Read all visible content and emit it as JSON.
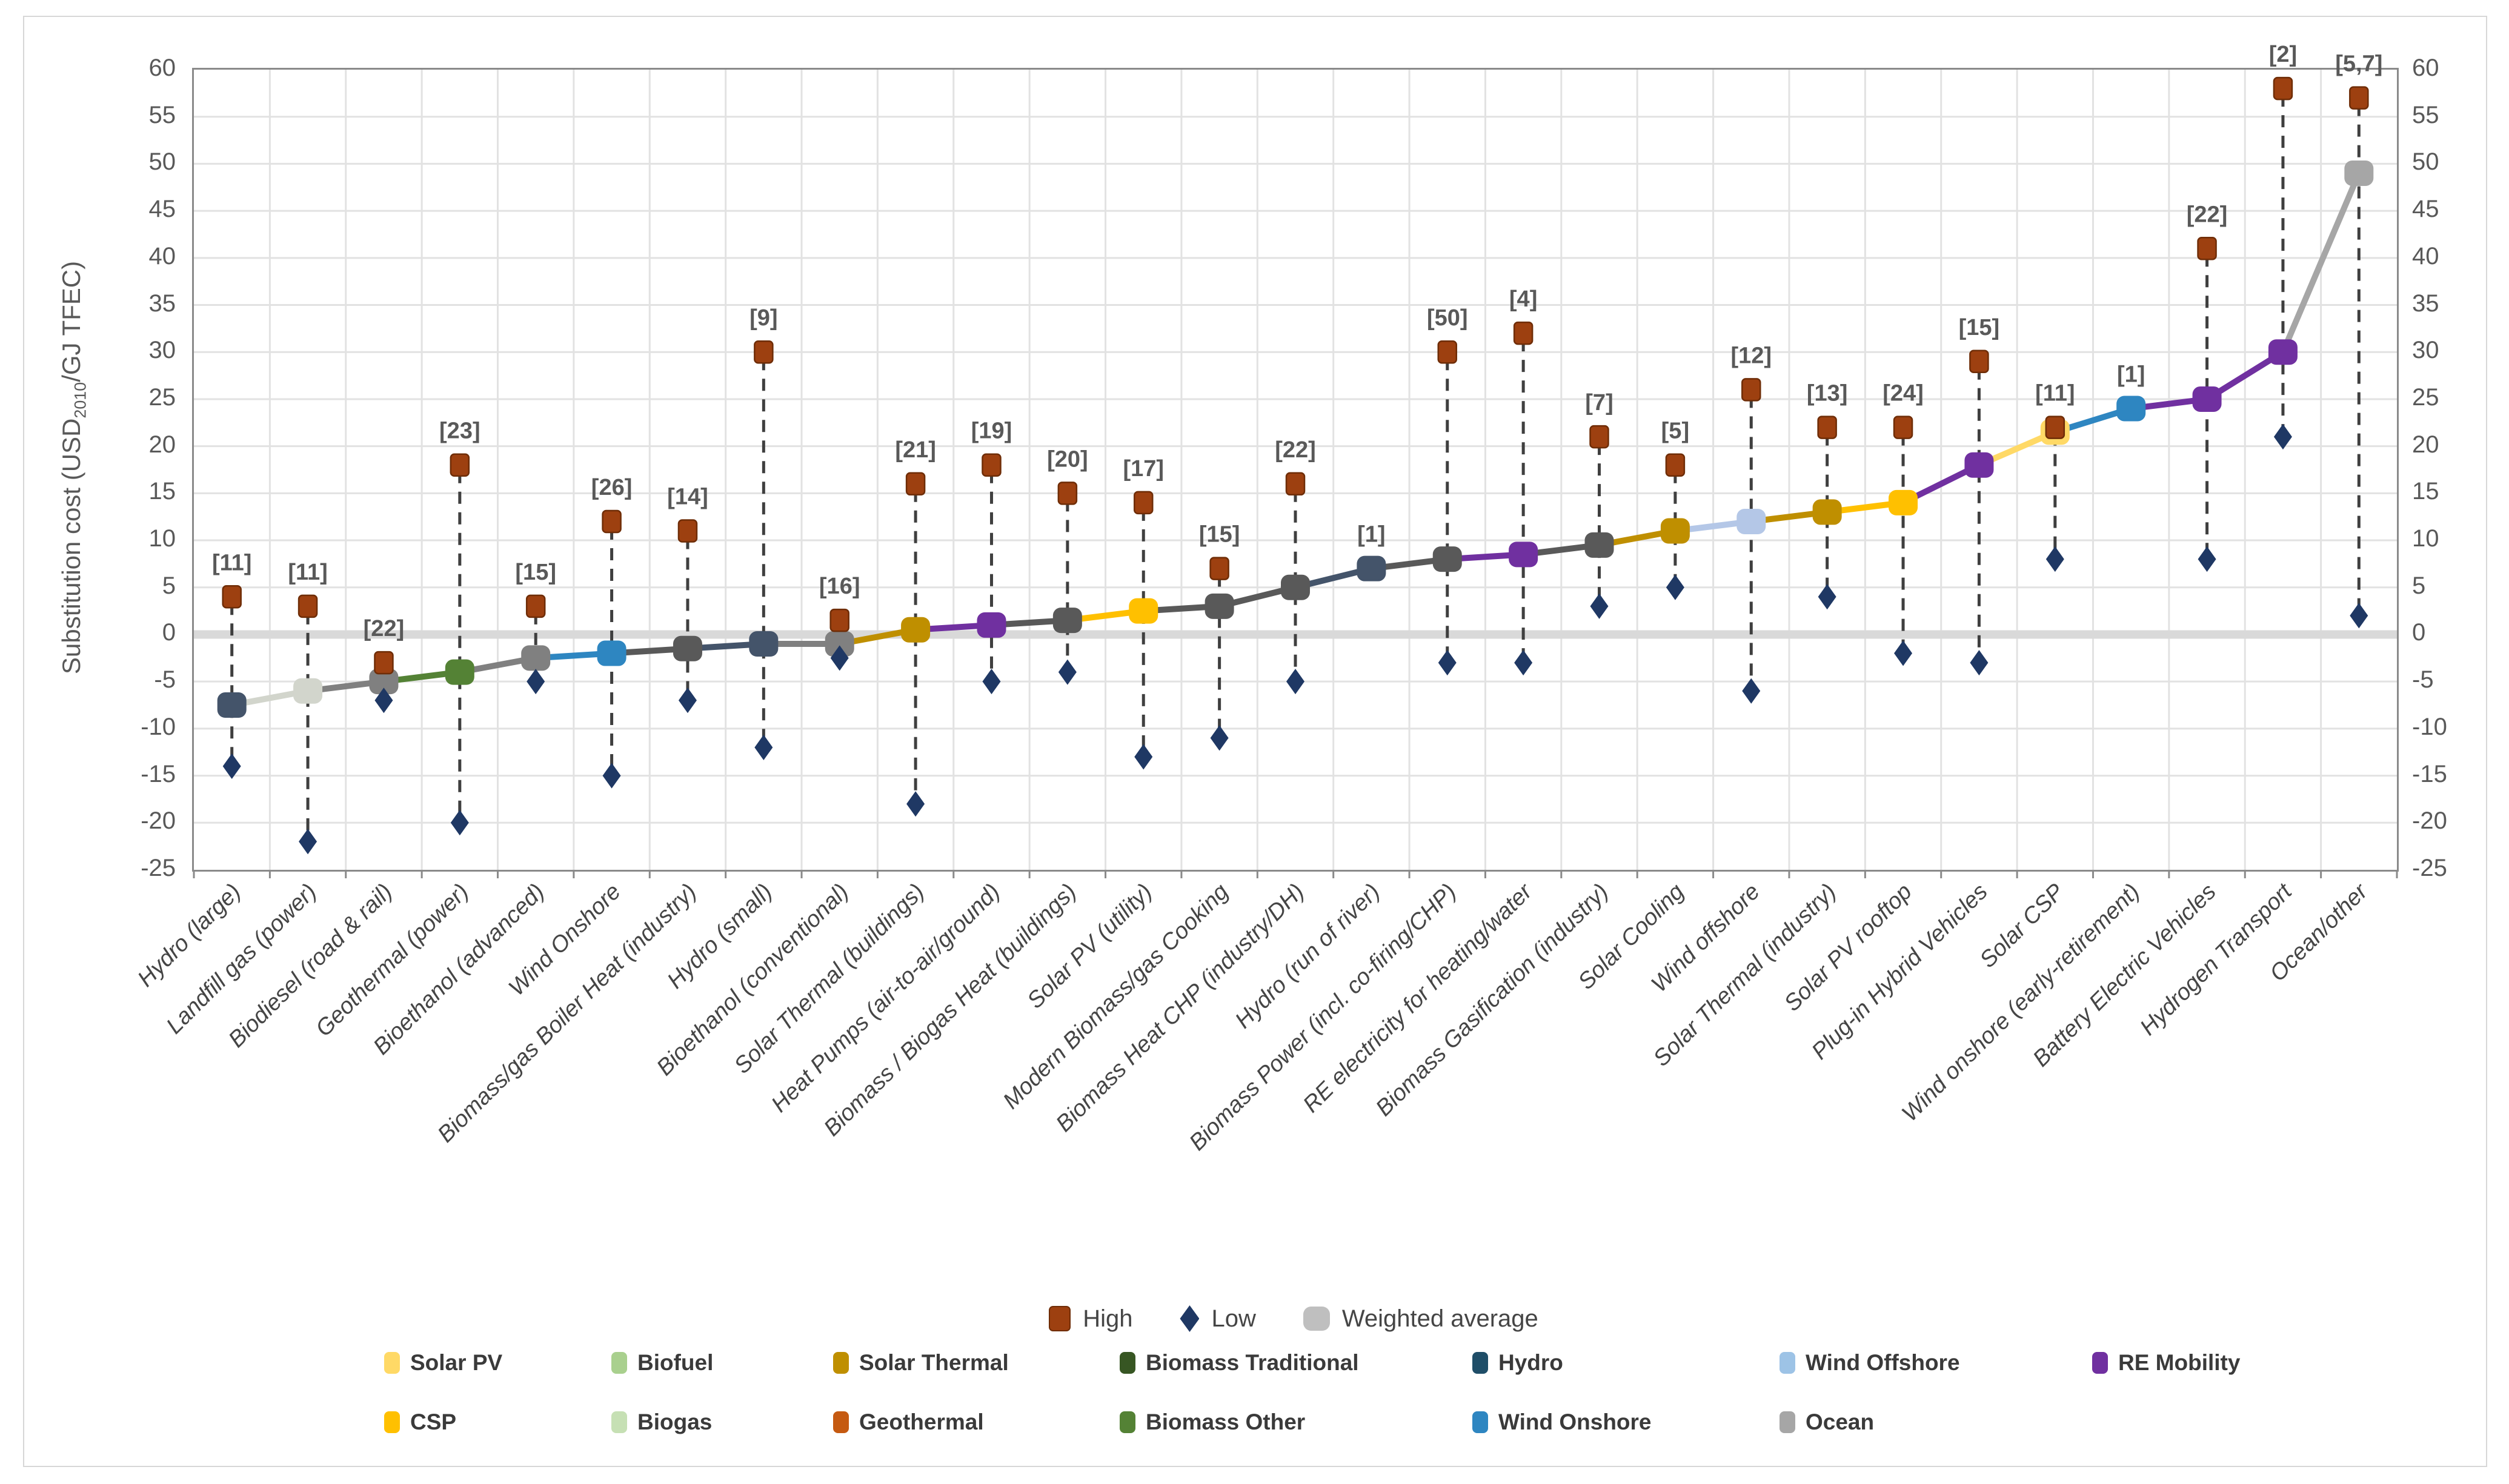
{
  "axis": {
    "title_pre": "Substitution cost (USD",
    "title_sub": "2010",
    "title_post": "/GJ TFEC)",
    "tick_labels": [
      "60",
      "55",
      "50",
      "45",
      "40",
      "35",
      "30",
      "25",
      "20",
      "15",
      "10",
      "5",
      "0",
      "-5",
      "-10",
      "-15",
      "-20",
      "-25"
    ],
    "tick_values": [
      60,
      55,
      50,
      45,
      40,
      35,
      30,
      25,
      20,
      15,
      10,
      5,
      0,
      -5,
      -10,
      -15,
      -20,
      -25
    ]
  },
  "top_legend": [
    {
      "label": "High",
      "shape": "square",
      "color": "#9d4010"
    },
    {
      "label": "Low",
      "shape": "diamond",
      "color": "#1f3864"
    },
    {
      "label": "Weighted average",
      "shape": "round",
      "color": "#bfbfbf"
    }
  ],
  "bottom_legend": {
    "rows": [
      [
        {
          "label": "Solar PV",
          "color": "#ffd966"
        },
        {
          "label": "Biofuel",
          "color": "#a9d08e"
        },
        {
          "label": "Solar Thermal",
          "color": "#bf8f00"
        },
        {
          "label": "Biomass Traditional",
          "color": "#375623"
        },
        {
          "label": "Hydro",
          "color": "#1f4e68"
        },
        {
          "label": "Wind Offshore",
          "color": "#9dc3e6"
        },
        {
          "label": "RE Mobility",
          "color": "#7030a0"
        }
      ],
      [
        {
          "label": "CSP",
          "color": "#ffc000"
        },
        {
          "label": "Biogas",
          "color": "#c6e0b4"
        },
        {
          "label": "Geothermal",
          "color": "#c55a11"
        },
        {
          "label": "Biomass Other",
          "color": "#548235"
        },
        {
          "label": "Wind Onshore",
          "color": "#2e86c1"
        },
        {
          "label": "Ocean",
          "color": "#a6a6a6"
        }
      ]
    ]
  },
  "chart_data": {
    "type": "line",
    "title": "",
    "xlabel": "",
    "ylabel": "Substitution cost (USD2010/GJ TFEC)",
    "ylim": [
      -25,
      60
    ],
    "grid": true,
    "legend_position": "bottom",
    "series_legend": [
      "High",
      "Low",
      "Weighted average"
    ],
    "colors": {
      "high": "#9d4010",
      "high_border": "#6f2d07",
      "low": "#1f3864",
      "weighted_average_legend": "#bfbfbf",
      "dashed_line": "#3f3f3f",
      "gridline": "#e2e2e2",
      "zero_band": "#d9d9d9",
      "plot_border": "#8a8a8a",
      "bracket_text": "#595959"
    },
    "categories": [
      "Hydro (large)",
      "Landfill gas (power)",
      "Biodiesel (road & rail)",
      "Geothermal (power)",
      "Bioethanol (advanced)",
      "Wind Onshore",
      "Biomass/gas Boiler Heat (industry)",
      "Hydro (small)",
      "Bioethanol (conventional)",
      "Solar Thermal (buildings)",
      "Heat Pumps (air-to-air/ground)",
      "Biomass / Biogas Heat (buildings)",
      "Solar PV (utility)",
      "Modern Biomass/gas Cooking",
      "Biomass Heat CHP (industry/DH)",
      "Hydro (run of river)",
      "Biomass Power (incl. co-firing/CHP)",
      "RE electricity for heating/water",
      "Biomass Gasification (industry)",
      "Solar Cooling",
      "Wind offshore",
      "Solar Thermal (industry)",
      "Solar PV rooftop",
      "Plug-in Hybrid Vehicles",
      "Solar CSP",
      "Wind onshore (early-retirement)",
      "Battery Electric Vehicles",
      "Hydrogen Transport",
      "Ocean/other"
    ],
    "points": [
      {
        "category": "Hydro (large)",
        "study_count": "[11]",
        "high": 4,
        "low": -14,
        "wa": -7.5,
        "color": "#44546a",
        "has_range": true
      },
      {
        "category": "Landfill gas (power)",
        "study_count": "[11]",
        "high": 3,
        "low": -22,
        "wa": -6,
        "color": "#d2d5cc",
        "has_range": true
      },
      {
        "category": "Biodiesel (road & rail)",
        "study_count": "[22]",
        "high": -3,
        "low": -7,
        "wa": -5,
        "color": "#808080",
        "has_range": true
      },
      {
        "category": "Geothermal (power)",
        "study_count": "[23]",
        "high": 18,
        "low": -20,
        "wa": -4,
        "color": "#548235",
        "has_range": true
      },
      {
        "category": "Bioethanol (advanced)",
        "study_count": "[15]",
        "high": 3,
        "low": -5,
        "wa": -2.5,
        "color": "#808080",
        "has_range": true
      },
      {
        "category": "Wind Onshore",
        "study_count": "[26]",
        "high": 12,
        "low": -15,
        "wa": -2,
        "color": "#2e86c1",
        "has_range": true
      },
      {
        "category": "Biomass/gas Boiler Heat (industry)",
        "study_count": "[14]",
        "high": 11,
        "low": -7,
        "wa": -1.5,
        "color": "#595959",
        "has_range": true
      },
      {
        "category": "Hydro (small)",
        "study_count": "[9]",
        "high": 30,
        "low": -12,
        "wa": -1,
        "color": "#44546a",
        "has_range": true
      },
      {
        "category": "Bioethanol (conventional)",
        "study_count": "[16]",
        "high": 1.5,
        "low": -2.5,
        "wa": -1,
        "color": "#808080",
        "has_range": true
      },
      {
        "category": "Solar Thermal (buildings)",
        "study_count": "[21]",
        "high": 16,
        "low": -18,
        "wa": 0.5,
        "color": "#bf8f00",
        "has_range": true
      },
      {
        "category": "Heat Pumps (air-to-air/ground)",
        "study_count": "[19]",
        "high": 18,
        "low": -5,
        "wa": 1,
        "color": "#7030a0",
        "has_range": true
      },
      {
        "category": "Biomass / Biogas Heat (buildings)",
        "study_count": "[20]",
        "high": 15,
        "low": -4,
        "wa": 1.5,
        "color": "#595959",
        "has_range": true
      },
      {
        "category": "Solar PV (utility)",
        "study_count": "[17]",
        "high": 14,
        "low": -13,
        "wa": 2.5,
        "color": "#ffc000",
        "has_range": true
      },
      {
        "category": "Modern Biomass/gas Cooking",
        "study_count": "[15]",
        "high": 7,
        "low": -11,
        "wa": 3,
        "color": "#595959",
        "has_range": true
      },
      {
        "category": "Biomass Heat CHP (industry/DH)",
        "study_count": "[22]",
        "high": 16,
        "low": -5,
        "wa": 5,
        "color": "#595959",
        "has_range": true
      },
      {
        "category": "Hydro (run of river)",
        "study_count": "[1]",
        "high": 7,
        "low": 7,
        "wa": 7,
        "color": "#44546a",
        "has_range": false
      },
      {
        "category": "Biomass Power (incl. co-firing/CHP)",
        "study_count": "[50]",
        "high": 30,
        "low": -3,
        "wa": 8,
        "color": "#595959",
        "has_range": true
      },
      {
        "category": "RE electricity for heating/water",
        "study_count": "[4]",
        "high": 32,
        "low": -3,
        "wa": 8.5,
        "color": "#7030a0",
        "has_range": true
      },
      {
        "category": "Biomass Gasification (industry)",
        "study_count": "[7]",
        "high": 21,
        "low": 3,
        "wa": 9.5,
        "color": "#595959",
        "has_range": true
      },
      {
        "category": "Solar Cooling",
        "study_count": "[5]",
        "high": 18,
        "low": 5,
        "wa": 11,
        "color": "#bf8f00",
        "has_range": true
      },
      {
        "category": "Wind offshore",
        "study_count": "[12]",
        "high": 26,
        "low": -6,
        "wa": 12,
        "color": "#b4c7e7",
        "has_range": true
      },
      {
        "category": "Solar Thermal (industry)",
        "study_count": "[13]",
        "high": 22,
        "low": 4,
        "wa": 13,
        "color": "#bf8f00",
        "has_range": true
      },
      {
        "category": "Solar PV rooftop",
        "study_count": "[24]",
        "high": 22,
        "low": -2,
        "wa": 14,
        "color": "#ffc000",
        "has_range": true
      },
      {
        "category": "Plug-in Hybrid Vehicles",
        "study_count": "[15]",
        "high": 29,
        "low": -3,
        "wa": 18,
        "color": "#7030a0",
        "has_range": true
      },
      {
        "category": "Solar CSP",
        "study_count": "[11]",
        "high": 22,
        "low": 8,
        "wa": 21.5,
        "color": "#ffd966",
        "has_range": true
      },
      {
        "category": "Wind onshore (early-retirement)",
        "study_count": "[1]",
        "high": 24,
        "low": 24,
        "wa": 24,
        "color": "#2e86c1",
        "has_range": false
      },
      {
        "category": "Battery Electric Vehicles",
        "study_count": "[22]",
        "high": 41,
        "low": 8,
        "wa": 25,
        "color": "#7030a0",
        "has_range": true
      },
      {
        "category": "Hydrogen Transport",
        "study_count": "[2]",
        "high": 58,
        "low": 21,
        "wa": 30,
        "color": "#7030a0",
        "has_range": true
      },
      {
        "category": "Ocean/other",
        "study_count": "[5,7]",
        "high": 57,
        "low": 2,
        "wa": 49,
        "color": "#a6a6a6",
        "has_range": true
      }
    ]
  }
}
